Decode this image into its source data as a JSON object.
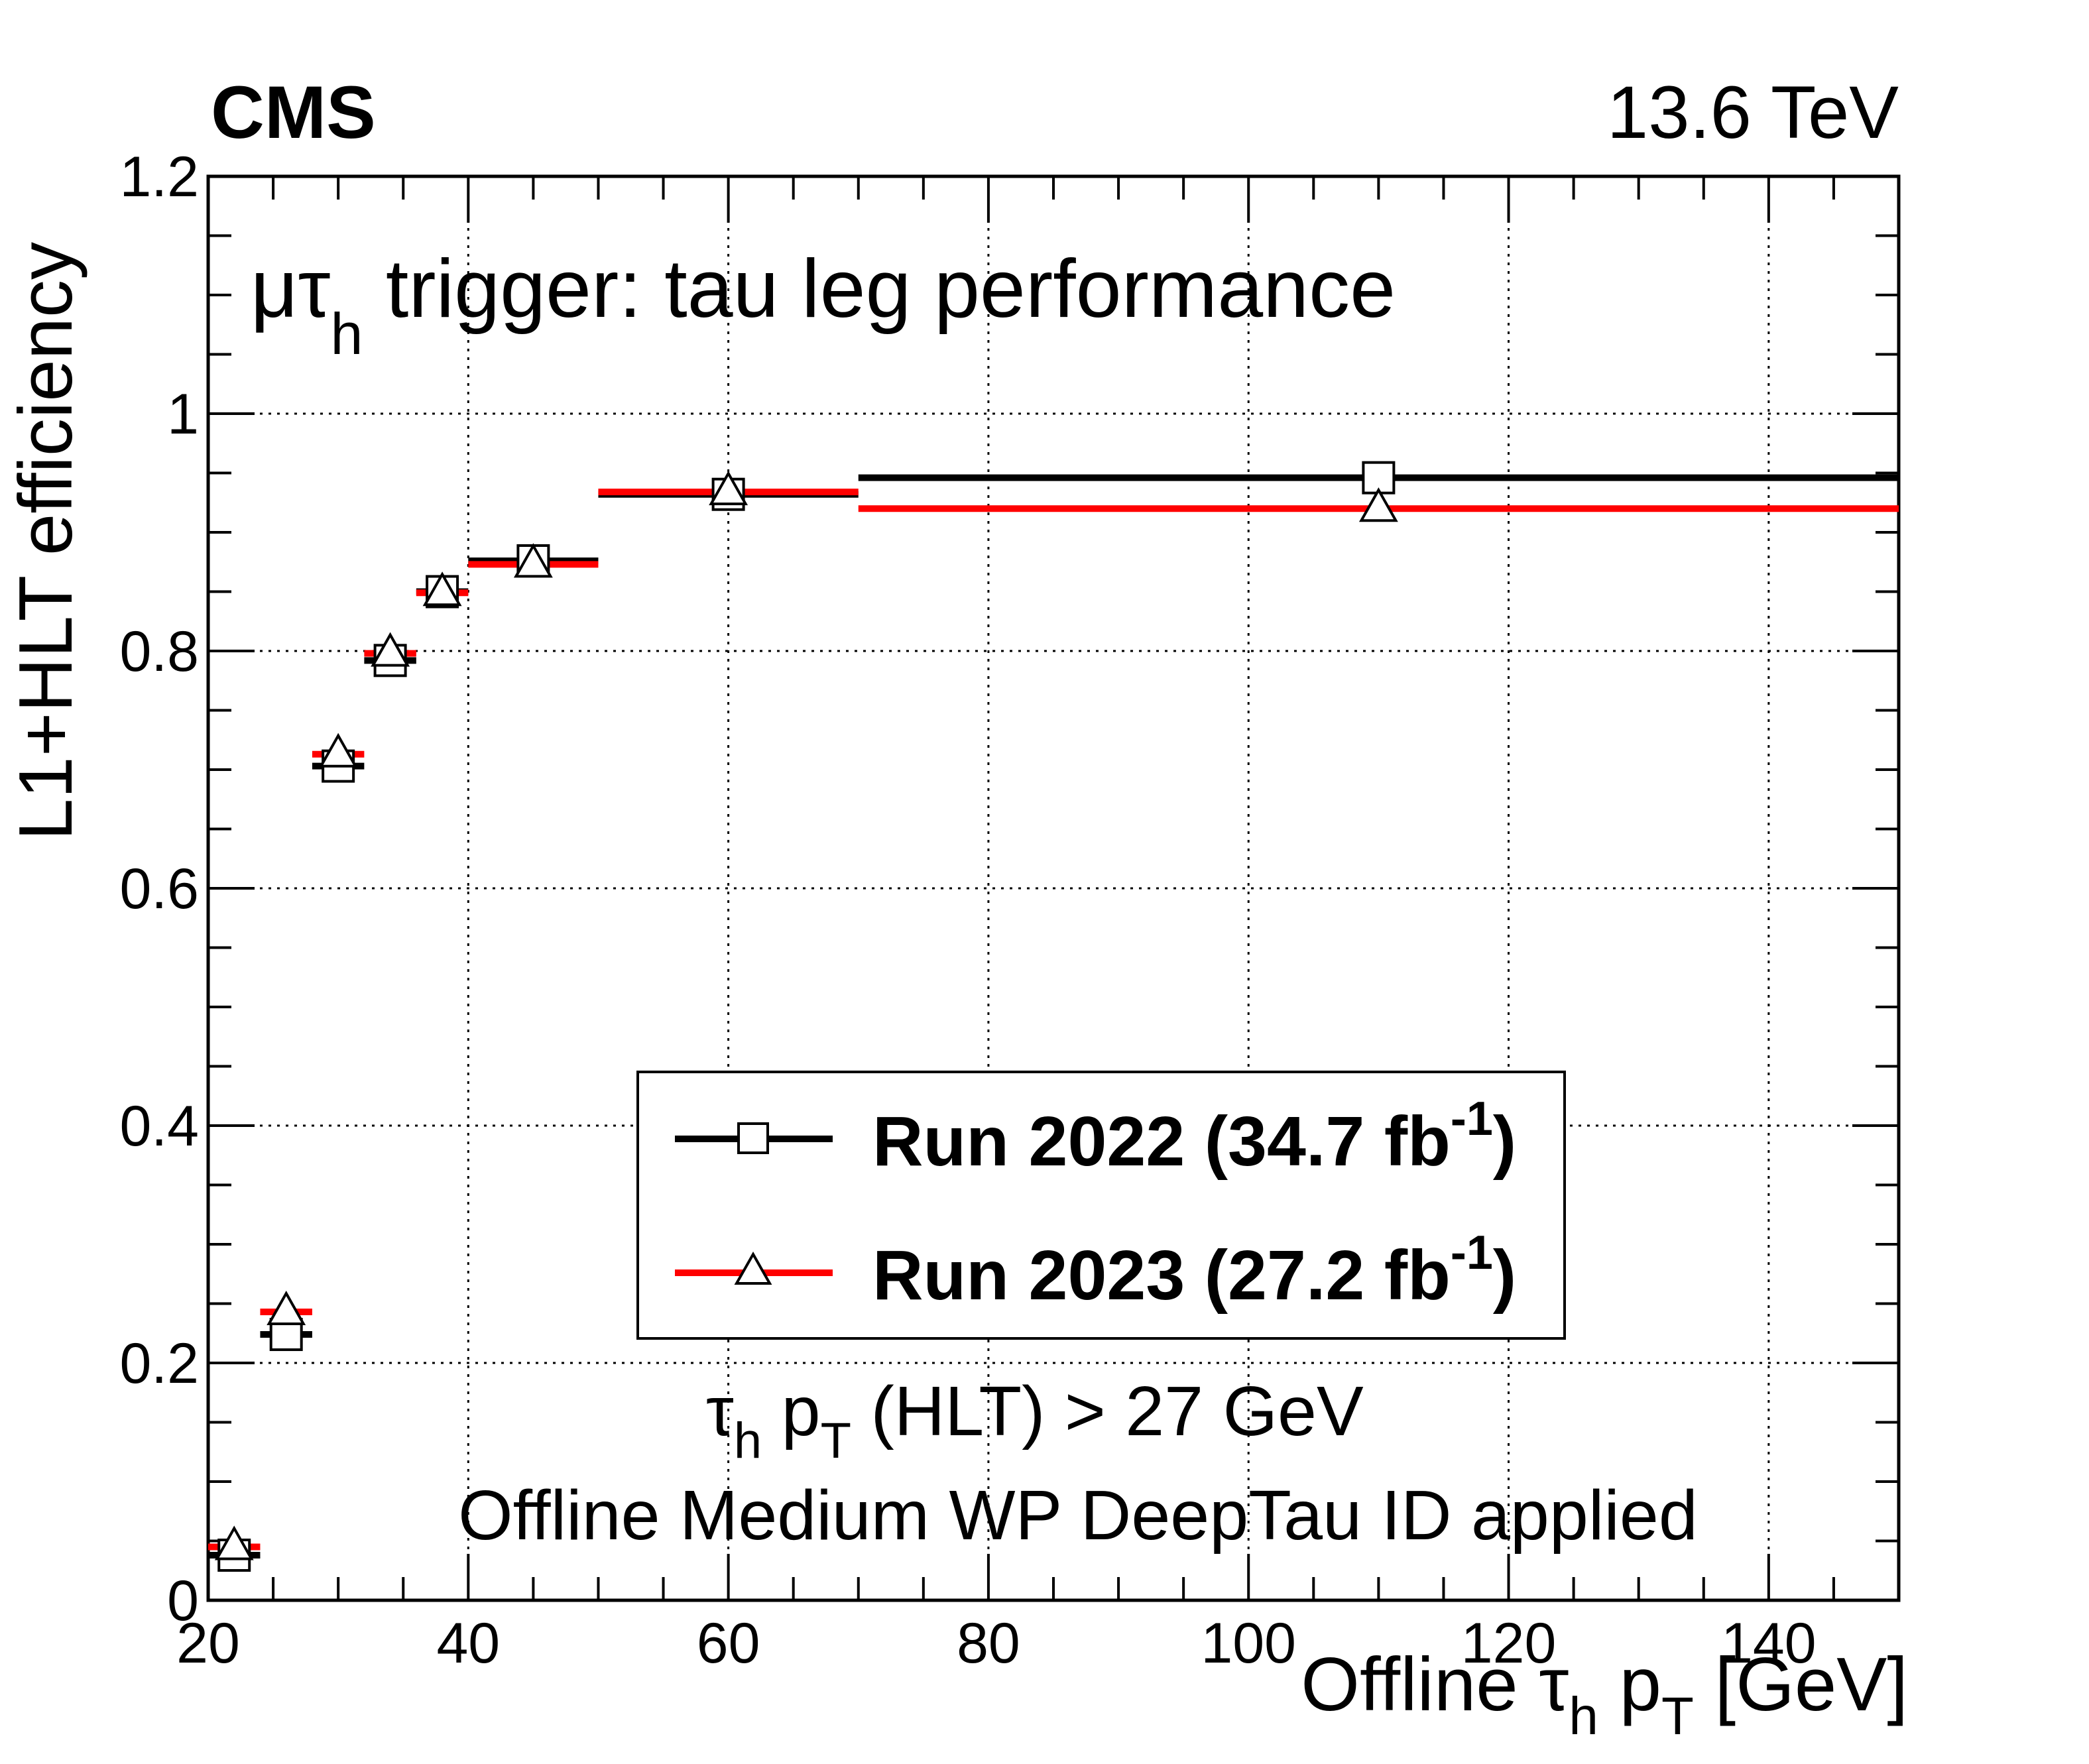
{
  "header": {
    "experiment": "CMS",
    "energy": "13.6 TeV"
  },
  "annotations": {
    "title_mu_tau": "μτ",
    "title_sub": "h",
    "title_rest": " trigger: tau leg performance",
    "cut_tau": "τ",
    "cut_h": "h",
    "cut_p": " p",
    "cut_T": "T",
    "cut_rest": " (HLT) > 27 GeV",
    "id_line": "Offline Medium WP DeepTau ID applied"
  },
  "axes": {
    "ylabel": "L1+HLT efficiency",
    "xlabel_pre": "Offline ",
    "xlabel_tau": "τ",
    "xlabel_h": "h",
    "xlabel_p": " p",
    "xlabel_T": "T",
    "xlabel_post": " [GeV]"
  },
  "legend": {
    "entries": [
      {
        "label_pre": "Run 2022 (34.7 fb",
        "sup": "-1",
        "label_post": ")",
        "marker": "open-square",
        "color": "#000000"
      },
      {
        "label_pre": "Run 2023 (27.2 fb",
        "sup": "-1",
        "label_post": ")",
        "marker": "open-triangle",
        "color": "#ff0000"
      }
    ]
  },
  "chart_data": {
    "type": "scatter",
    "xlim": [
      20,
      150
    ],
    "ylim": [
      0,
      1.2
    ],
    "grid": true,
    "legend_position": "center",
    "x_ticks": [
      20,
      40,
      60,
      80,
      100,
      120,
      140
    ],
    "x_tick_labels": [
      "20",
      "40",
      "60",
      "80",
      "100",
      "120",
      "140"
    ],
    "y_ticks": [
      0,
      0.2,
      0.4,
      0.6,
      0.8,
      1,
      1.2
    ],
    "y_tick_labels": [
      "0",
      "0.2",
      "0.4",
      "0.6",
      "0.8",
      "1",
      "1.2"
    ],
    "series": [
      {
        "name": "Run 2022 (34.7 fb-1)",
        "color": "#000000",
        "marker": "open-square",
        "points": [
          {
            "x": 22,
            "xlo": 20,
            "xhi": 24,
            "y": 0.038
          },
          {
            "x": 26,
            "xlo": 24,
            "xhi": 28,
            "y": 0.224
          },
          {
            "x": 30,
            "xlo": 28,
            "xhi": 32,
            "y": 0.703
          },
          {
            "x": 34,
            "xlo": 32,
            "xhi": 36,
            "y": 0.792
          },
          {
            "x": 38,
            "xlo": 36,
            "xhi": 40,
            "y": 0.85
          },
          {
            "x": 45,
            "xlo": 40,
            "xhi": 50,
            "y": 0.876
          },
          {
            "x": 60,
            "xlo": 50,
            "xhi": 70,
            "y": 0.932
          },
          {
            "x": 110,
            "xlo": 70,
            "xhi": 150,
            "y": 0.946
          }
        ]
      },
      {
        "name": "Run 2023 (27.2 fb-1)",
        "color": "#ff0000",
        "marker": "open-triangle",
        "points": [
          {
            "x": 22,
            "xlo": 20,
            "xhi": 24,
            "y": 0.045
          },
          {
            "x": 26,
            "xlo": 24,
            "xhi": 28,
            "y": 0.243
          },
          {
            "x": 30,
            "xlo": 28,
            "xhi": 32,
            "y": 0.713
          },
          {
            "x": 34,
            "xlo": 32,
            "xhi": 36,
            "y": 0.798
          },
          {
            "x": 38,
            "xlo": 36,
            "xhi": 40,
            "y": 0.849
          },
          {
            "x": 45,
            "xlo": 40,
            "xhi": 50,
            "y": 0.873
          },
          {
            "x": 60,
            "xlo": 50,
            "xhi": 70,
            "y": 0.934
          },
          {
            "x": 110,
            "xlo": 70,
            "xhi": 150,
            "y": 0.92
          }
        ]
      }
    ]
  }
}
